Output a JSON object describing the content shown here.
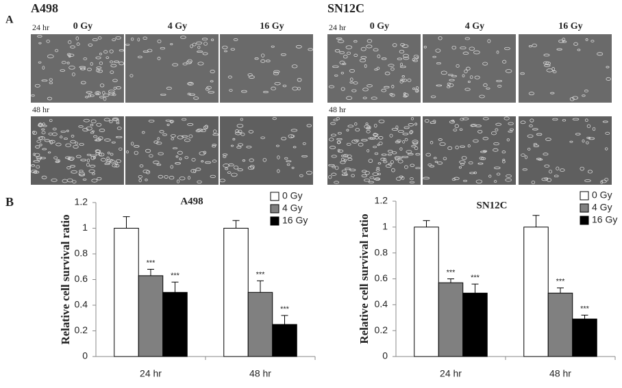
{
  "panel_a": {
    "label": "A",
    "groups": [
      {
        "name": "A498",
        "doses": [
          "0 Gy",
          "4 Gy",
          "16 Gy"
        ],
        "times": [
          "24 hr",
          "48 hr"
        ]
      },
      {
        "name": "SN12C",
        "doses": [
          "0 Gy",
          "4 Gy",
          "16 Gy"
        ],
        "times": [
          "24 hr",
          "48 hr"
        ]
      }
    ]
  },
  "panel_b": {
    "label": "B"
  },
  "chart_data": [
    {
      "type": "bar",
      "title": "A498",
      "y_label": "Relative cell survival ratio",
      "categories": [
        "24 hr",
        "48 hr"
      ],
      "ylim": [
        0,
        1.2
      ],
      "yticks": [
        0,
        0.2,
        0.4,
        0.6,
        0.8,
        1,
        1.2
      ],
      "series": [
        {
          "name": "0 Gy",
          "color": "#ffffff",
          "values": [
            1,
            1
          ],
          "errors": [
            0.09,
            0.06
          ],
          "significance": [
            null,
            null
          ]
        },
        {
          "name": "4 Gy",
          "color": "#808080",
          "values": [
            0.63,
            0.5
          ],
          "errors": [
            0.05,
            0.09
          ],
          "significance": [
            "***",
            "***"
          ]
        },
        {
          "name": "16 Gy",
          "color": "#000000",
          "values": [
            0.5,
            0.25
          ],
          "errors": [
            0.08,
            0.07
          ],
          "significance": [
            "***",
            "***"
          ]
        }
      ]
    },
    {
      "type": "bar",
      "title": "SN12C",
      "y_label": "Relative cell survival ratio",
      "categories": [
        "24 hr",
        "48 hr"
      ],
      "ylim": [
        0,
        1.2
      ],
      "yticks": [
        0,
        0.2,
        0.4,
        0.6,
        0.8,
        1,
        1.2
      ],
      "series": [
        {
          "name": "0 Gy",
          "color": "#ffffff",
          "values": [
            1,
            1
          ],
          "errors": [
            0.05,
            0.09
          ],
          "significance": [
            null,
            null
          ]
        },
        {
          "name": "4 Gy",
          "color": "#808080",
          "values": [
            0.57,
            0.49
          ],
          "errors": [
            0.03,
            0.04
          ],
          "significance": [
            "***",
            "***"
          ]
        },
        {
          "name": "16 Gy",
          "color": "#000000",
          "values": [
            0.49,
            0.29
          ],
          "errors": [
            0.07,
            0.03
          ],
          "significance": [
            "***",
            "***"
          ]
        }
      ]
    }
  ]
}
